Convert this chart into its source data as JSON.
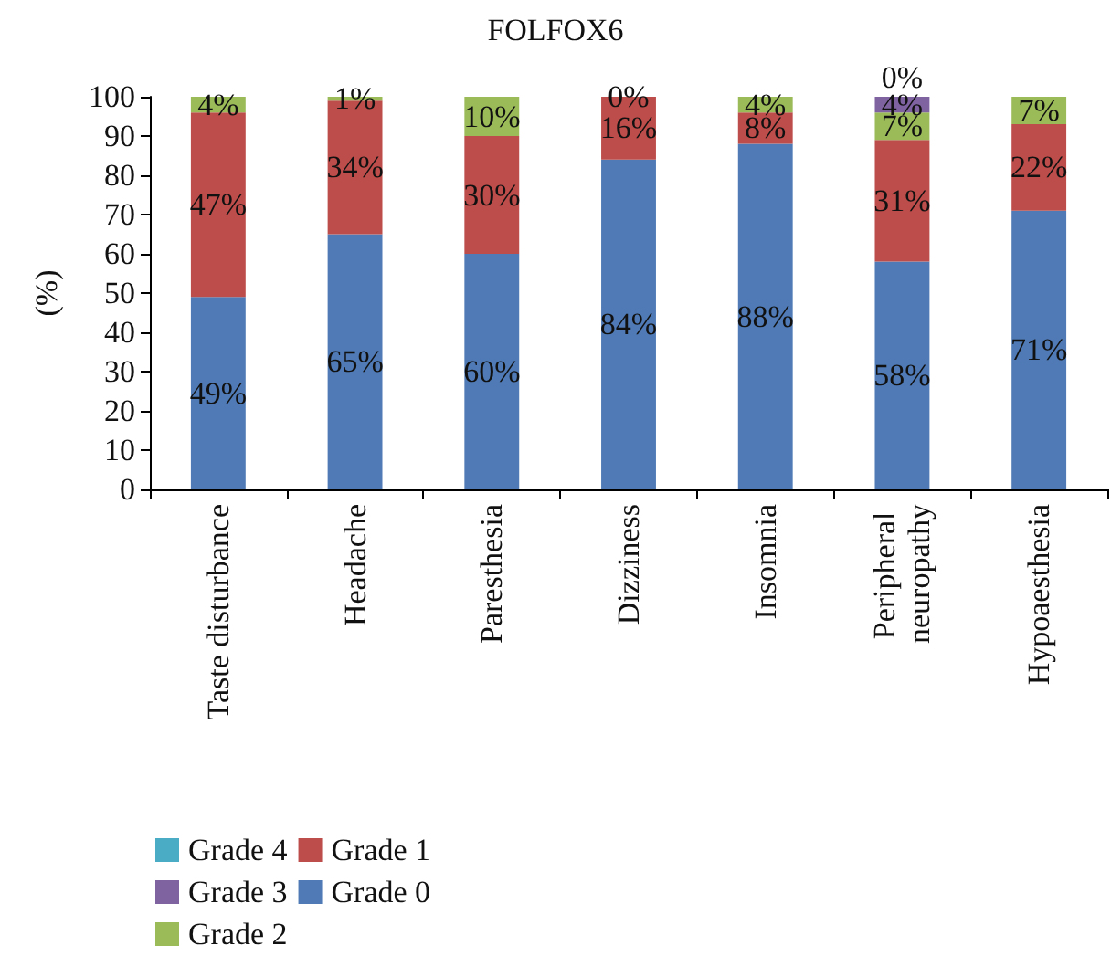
{
  "chart_data": {
    "type": "bar",
    "title": "FOLFOX6",
    "ylabel": "(%)",
    "stacked": true,
    "legend": "bottom",
    "grid": false,
    "categories": [
      "Taste disturbance",
      "Headache",
      "Paresthesia",
      "Dizziness",
      "Insomnia",
      "Peripheral neuropathy",
      "Hypoaesthesia"
    ],
    "ylim": [
      0,
      100
    ],
    "yticks": [
      0,
      10,
      20,
      30,
      40,
      50,
      60,
      70,
      80,
      90,
      100
    ],
    "series": [
      {
        "name": "Grade 0",
        "color": "#4f7ab5",
        "values": [
          49,
          65,
          60,
          84,
          88,
          58,
          71
        ],
        "value_labels": [
          "49%",
          "65%",
          "60%",
          "84%",
          "88%",
          "58%",
          "71%"
        ]
      },
      {
        "name": "Grade 1",
        "color": "#bd4d4a",
        "values": [
          47,
          34,
          30,
          16,
          8,
          31,
          22
        ],
        "value_labels": [
          "47%",
          "34%",
          "30%",
          "16%",
          "8%",
          "31%",
          "22%"
        ]
      },
      {
        "name": "Grade 2",
        "color": "#9bbb59",
        "values": [
          4,
          1,
          10,
          0,
          4,
          7,
          7
        ],
        "value_labels": [
          "4%",
          "1%",
          "10%",
          "0%",
          "4%",
          "7%",
          "7%"
        ]
      },
      {
        "name": "Grade 3",
        "color": "#7f63a1",
        "values": [
          0,
          0,
          0,
          0,
          0,
          4,
          0
        ],
        "value_labels": [
          null,
          null,
          null,
          null,
          null,
          "4%",
          null
        ]
      },
      {
        "name": "Grade 4",
        "color": "#4bacc6",
        "values": [
          0,
          0,
          0,
          0,
          0,
          0,
          0
        ],
        "value_labels": [
          null,
          null,
          null,
          null,
          null,
          "0%",
          null
        ]
      }
    ]
  }
}
